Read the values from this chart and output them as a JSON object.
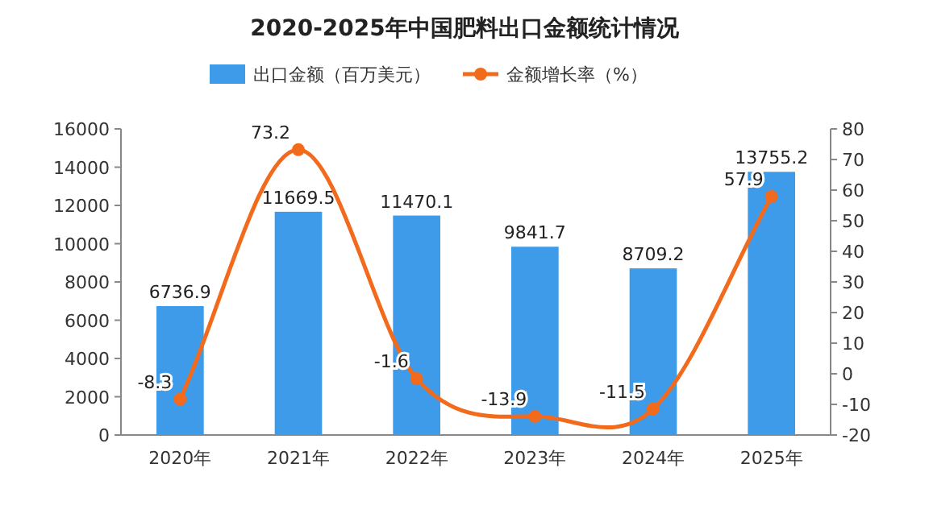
{
  "chart_data": {
    "type": "bar",
    "title": "2020-2025年中国肥料出口金额统计情况",
    "categories": [
      "2020年",
      "2021年",
      "2022年",
      "2023年",
      "2024年",
      "2025年"
    ],
    "series": [
      {
        "name": "出口金额（百万美元）",
        "color": "#3d9be9",
        "values": [
          6736.9,
          11669.5,
          11470.1,
          9841.7,
          8709.2,
          13755.2
        ]
      },
      {
        "name": "金额增长率（%）",
        "type": "line",
        "axis": "y2",
        "color": "#f26b1d",
        "values": [
          -8.3,
          73.2,
          -1.6,
          -13.9,
          -11.5,
          57.9
        ]
      }
    ],
    "ylim": [
      0,
      16000
    ],
    "yticks": [
      0,
      2000,
      4000,
      6000,
      8000,
      10000,
      12000,
      14000,
      16000
    ],
    "y2lim": [
      -20,
      80
    ],
    "y2ticks": [
      -20,
      -10,
      0,
      10,
      20,
      30,
      40,
      50,
      60,
      70,
      80
    ],
    "data_labels": true,
    "legend": "top",
    "marker": "circle",
    "grid": false
  }
}
